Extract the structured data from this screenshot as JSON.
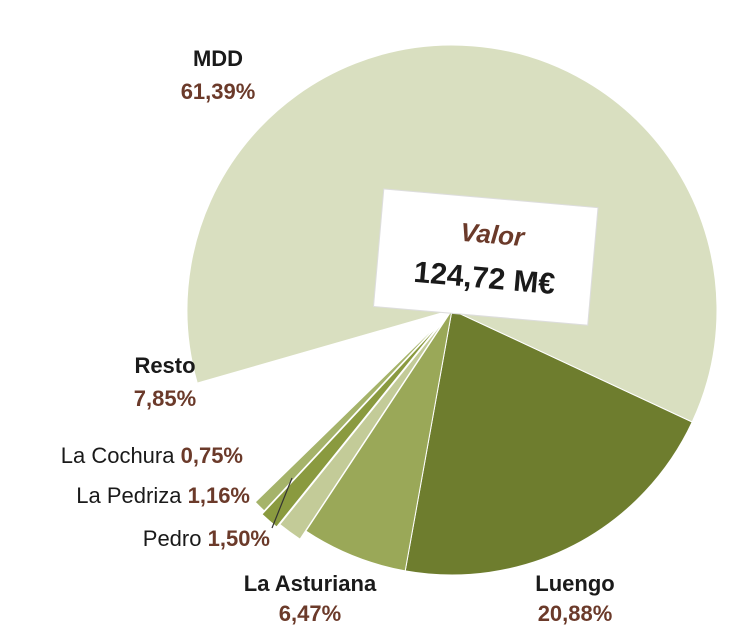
{
  "chart_data": {
    "type": "pie",
    "categories": [
      "MDD",
      "Luengo",
      "La Asturiana",
      "Pedro",
      "La Pedriza",
      "La Cochura",
      "Resto"
    ],
    "values": [
      61.39,
      20.88,
      6.47,
      1.5,
      1.16,
      0.75,
      7.85
    ],
    "value_labels": [
      "61,39%",
      "20,88%",
      "6,47%",
      "1,50%",
      "1,16%",
      "0,75%",
      "7,85%"
    ],
    "colors": [
      "#d9dfc0",
      "#6e7d2e",
      "#9aa858",
      "#c3cb98",
      "#8a9a3f",
      "#a5b36a",
      "#ffffff"
    ],
    "center_title": "Valor",
    "center_value": "124,72 M€"
  }
}
